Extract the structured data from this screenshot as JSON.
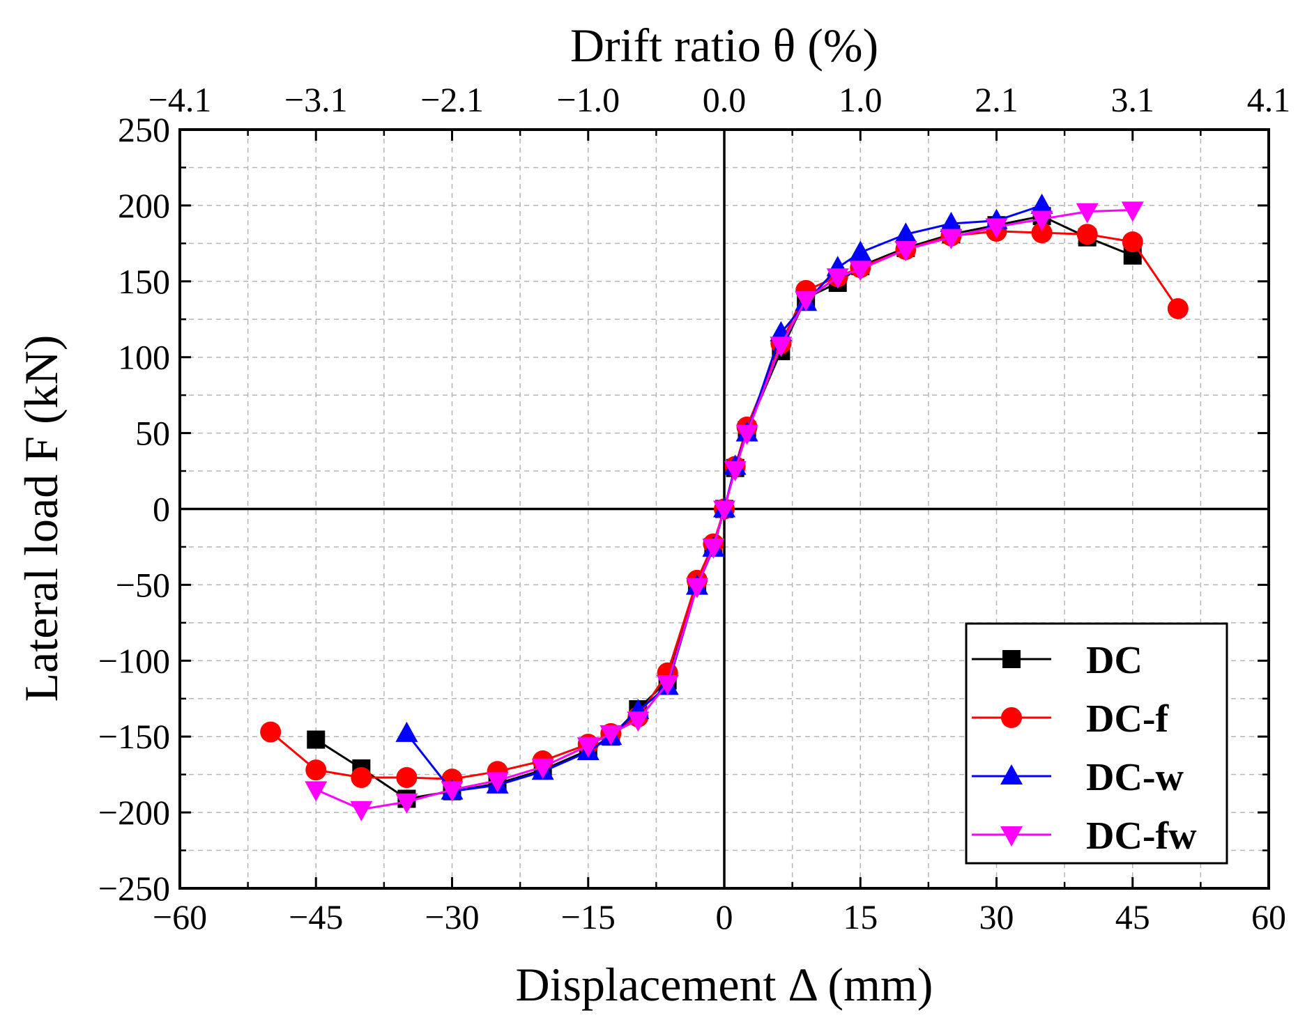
{
  "chart_data": {
    "type": "line",
    "title": "",
    "xlabel": "Displacement Δ (mm)",
    "ylabel": "Lateral load F (kN)",
    "x2label": "Drift ratio θ (%)",
    "xlim": [
      -60,
      60
    ],
    "ylim": [
      -250,
      250
    ],
    "x_ticks": [
      -60,
      -45,
      -30,
      -15,
      0,
      15,
      30,
      45,
      60
    ],
    "x_tick_labels": [
      "−60",
      "−45",
      "−30",
      "−15",
      "0",
      "15",
      "30",
      "45",
      "60"
    ],
    "y_ticks": [
      -250,
      -200,
      -150,
      -100,
      -50,
      0,
      50,
      100,
      150,
      200,
      250
    ],
    "y_tick_labels": [
      "−250",
      "−200",
      "−150",
      "−100",
      "−50",
      "0",
      "50",
      "100",
      "150",
      "200",
      "250"
    ],
    "x2_ticks": [
      -60,
      -45,
      -30,
      -15,
      0,
      15,
      30,
      45,
      60
    ],
    "x2_tick_labels": [
      "−4.1",
      "−3.1",
      "−2.1",
      "−1.0",
      "0.0",
      "1.0",
      "2.1",
      "3.1",
      "4.1"
    ],
    "grid": true,
    "legend_position": "bottom-right",
    "series": [
      {
        "name": "DC",
        "color": "#000000",
        "marker": "square",
        "x": [
          -45,
          -40,
          -35,
          -30,
          -25,
          -20,
          -15,
          -12.5,
          -9.5,
          -6.25,
          -3,
          -1.2,
          0,
          1.2,
          2.5,
          6.25,
          9,
          12.5,
          15,
          20,
          25,
          30,
          35,
          40,
          45
        ],
        "y": [
          -152,
          -171,
          -191,
          -186,
          -181,
          -172,
          -159,
          -150,
          -132,
          -113,
          -50,
          -25,
          0,
          27,
          52,
          104,
          139,
          149,
          160,
          172,
          181,
          187,
          193,
          179,
          167
        ]
      },
      {
        "name": "DC-f",
        "color": "#ff0000",
        "marker": "circle",
        "x": [
          -50,
          -45,
          -40,
          -35,
          -30,
          -25,
          -20,
          -15,
          -12.5,
          -9.5,
          -6.25,
          -3,
          -1.2,
          0,
          1.2,
          2.5,
          6.25,
          9,
          12.5,
          15,
          20,
          25,
          30,
          35,
          40,
          45,
          50
        ],
        "y": [
          -147,
          -172,
          -177,
          -177,
          -178,
          -173,
          -166,
          -155,
          -148,
          -137,
          -108,
          -47,
          -23,
          0,
          28,
          54,
          109,
          144,
          153,
          159,
          171,
          180,
          183,
          182,
          181,
          176,
          132
        ]
      },
      {
        "name": "DC-w",
        "color": "#0000ff",
        "marker": "triangle-up",
        "x": [
          -35,
          -30,
          -25,
          -20,
          -15,
          -12.5,
          -9.5,
          -6.25,
          -3,
          -1.2,
          0,
          1.2,
          2.5,
          6.25,
          9,
          12.5,
          15,
          20,
          25,
          30,
          35
        ],
        "y": [
          -148,
          -186,
          -182,
          -173,
          -160,
          -150,
          -133,
          -117,
          -51,
          -26,
          0,
          28,
          50,
          116,
          136,
          159,
          169,
          181,
          188,
          190,
          200
        ]
      },
      {
        "name": "DC-fw",
        "color": "#ff00ff",
        "marker": "triangle-down",
        "x": [
          -45,
          -40,
          -35,
          -30,
          -25,
          -20,
          -15,
          -12.5,
          -9.5,
          -6.25,
          -3,
          -1.2,
          0,
          1.2,
          2.5,
          6.25,
          9,
          12.5,
          15,
          20,
          25,
          30,
          35,
          40,
          45
        ],
        "y": [
          -185,
          -198,
          -193,
          -185,
          -179,
          -170,
          -156,
          -148,
          -139,
          -115,
          -51,
          -25,
          0,
          26,
          50,
          108,
          138,
          153,
          158,
          171,
          179,
          186,
          191,
          196,
          197
        ]
      }
    ]
  }
}
